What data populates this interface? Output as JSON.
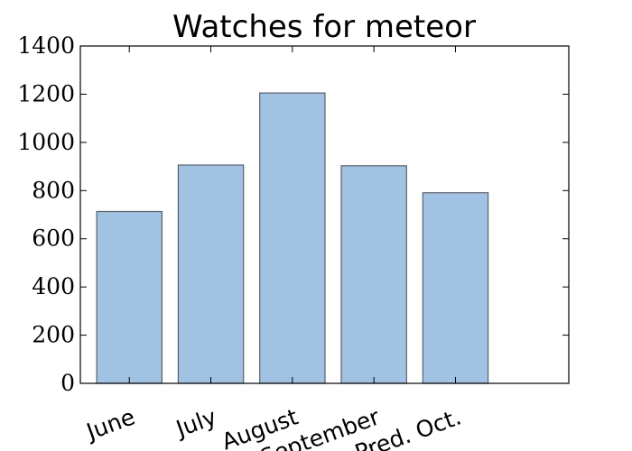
{
  "chart_data": {
    "type": "bar",
    "title": "Watches for meteor",
    "categories": [
      "June",
      "July",
      "August",
      "September",
      "Pred. Oct."
    ],
    "values": [
      713,
      906,
      1205,
      903,
      791
    ],
    "xlabel": "",
    "ylabel": "",
    "ylim": [
      0,
      1400
    ],
    "yticks": [
      0,
      200,
      400,
      600,
      800,
      1000,
      1200,
      1400
    ],
    "xtick_rotation_deg": -20,
    "grid": false,
    "colors": {
      "bar_fill": "#a1c2e3",
      "bar_edge": "#5a6168"
    }
  }
}
